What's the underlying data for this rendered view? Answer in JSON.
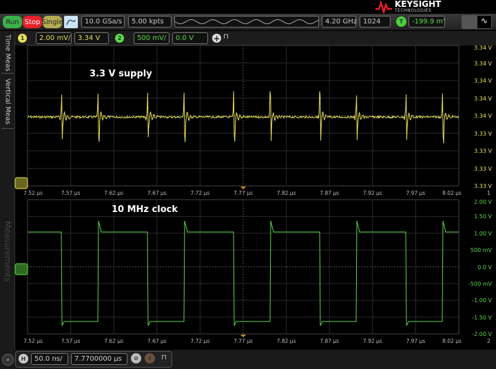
{
  "brand": {
    "name": "KEYSIGHT",
    "sub": "TECHNOLOGIES",
    "color": "#e5202e"
  },
  "toolbar": {
    "run": "Run",
    "stop": "Stop",
    "single": "Single",
    "sample_rate": "10.0 GSa/s",
    "memory_depth": "5.00 kpts",
    "bandwidth": "4.20 GHz",
    "averages": "1024",
    "trigger_icon": "T",
    "trigger_level": "-199.9 m'"
  },
  "channels": [
    {
      "num": "1",
      "scale": "2.00 mV/",
      "offset": "3.34 V",
      "color": "#e8e05a"
    },
    {
      "num": "2",
      "scale": "500 mV/",
      "offset": "0.0 V",
      "color": "#5fd84a"
    }
  ],
  "sidebar": {
    "tabs": [
      "Time Meas",
      "Vertical Meas"
    ],
    "panel": "Measurements"
  },
  "plot1": {
    "annotation": "3.3 V supply",
    "y_labels": [
      "3.34 V",
      "3.34 V",
      "3.34 V",
      "3.34 V",
      "3.34 V",
      "3.33 V",
      "3.33 V",
      "3.33 V",
      "3.33 V"
    ],
    "index": "1"
  },
  "plot2": {
    "annotation": "10 MHz clock",
    "y_labels": [
      "2.00 V",
      "1.50 V",
      "1.00 V",
      "500 mV",
      "0.0 V",
      "-500 mV",
      "-1.00 V",
      "-1.50 V",
      "-2.00 V"
    ],
    "index": "2"
  },
  "time_labels": [
    "7.52 µs",
    "7.57 µs",
    "7.62 µs",
    "7.67 µs",
    "7.72 µs",
    "7.77 µs",
    "7.82 µs",
    "7.87 µs",
    "7.92 µs",
    "7.97 µs",
    "8.02 µs"
  ],
  "horizontal": {
    "icon": "H",
    "scale": "50.0 ns/",
    "position": "7.7700000 µs"
  },
  "chart_data": {
    "type": "line",
    "x_range_us": [
      7.52,
      8.02
    ],
    "series": [
      {
        "name": "1",
        "ylim": [
          3.3332,
          3.3348
        ],
        "description_level_V": 3.34
      },
      {
        "name": "2",
        "ylim": [
          -2.0,
          2.0
        ],
        "frequency_MHz": 10,
        "high_V": 1.1,
        "low_V": -1.6
      }
    ],
    "grid": true
  }
}
